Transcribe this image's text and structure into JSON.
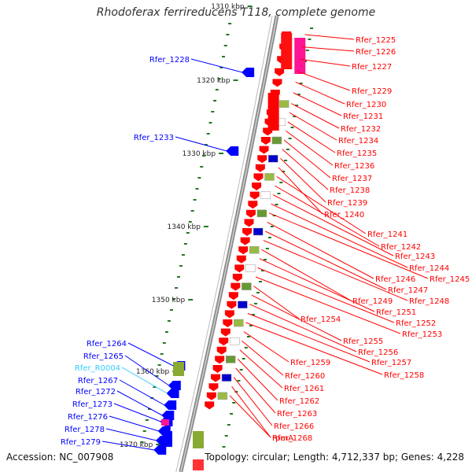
{
  "title": "Rhodoferax ferrireducens T118, complete genome",
  "accession": "Accession: NC_007908",
  "topology": "Topology: circular; Length: 4,712,337 bp; Genes: 4,228",
  "colors": {
    "forward": "#ff0000",
    "reverse": "#0000ff",
    "rna": "#33ccff",
    "tick": "#227722",
    "axis": "#888888"
  },
  "ticks": [
    "1310 kbp",
    "1320 kbp",
    "1330 kbp",
    "1340 kbp",
    "1350 kbp",
    "1360 kbp",
    "1370 kbp"
  ],
  "right_genes": [
    "Rfer_1225",
    "Rfer_1226",
    "Rfer_1227",
    "Rfer_1229",
    "Rfer_1230",
    "Rfer_1231",
    "Rfer_1232",
    "Rfer_1234",
    "Rfer_1235",
    "Rfer_1236",
    "Rfer_1237",
    "Rfer_1238",
    "Rfer_1239",
    "Rfer_1240",
    "Rfer_1241",
    "Rfer_1242",
    "Rfer_1243",
    "Rfer_1244",
    "Rfer_1245",
    "Rfer_1246",
    "Rfer_1247",
    "Rfer_1248",
    "Rfer_1249",
    "Rfer_1251",
    "Rfer_1252",
    "Rfer_1253",
    "Rfer_1254",
    "Rfer_1255",
    "Rfer_1256",
    "Rfer_1257",
    "Rfer_1258",
    "Rfer_1259",
    "Rfer_1260",
    "Rfer_1261",
    "Rfer_1262",
    "Rfer_1263",
    "Rfer_1266",
    "Rfer_1268",
    "rpmA"
  ],
  "left_genes": [
    {
      "name": "Rfer_1228",
      "kind": "reverse"
    },
    {
      "name": "Rfer_1233",
      "kind": "reverse"
    },
    {
      "name": "Rfer_1264",
      "kind": "reverse"
    },
    {
      "name": "Rfer_1265",
      "kind": "reverse"
    },
    {
      "name": "Rfer_R0004",
      "kind": "rna"
    },
    {
      "name": "Rfer_1267",
      "kind": "reverse"
    },
    {
      "name": "Rfer_1272",
      "kind": "reverse"
    },
    {
      "name": "Rfer_1273",
      "kind": "reverse"
    },
    {
      "name": "Rfer_1276",
      "kind": "reverse"
    },
    {
      "name": "Rfer_1278",
      "kind": "reverse"
    },
    {
      "name": "Rfer_1279",
      "kind": "reverse"
    }
  ]
}
